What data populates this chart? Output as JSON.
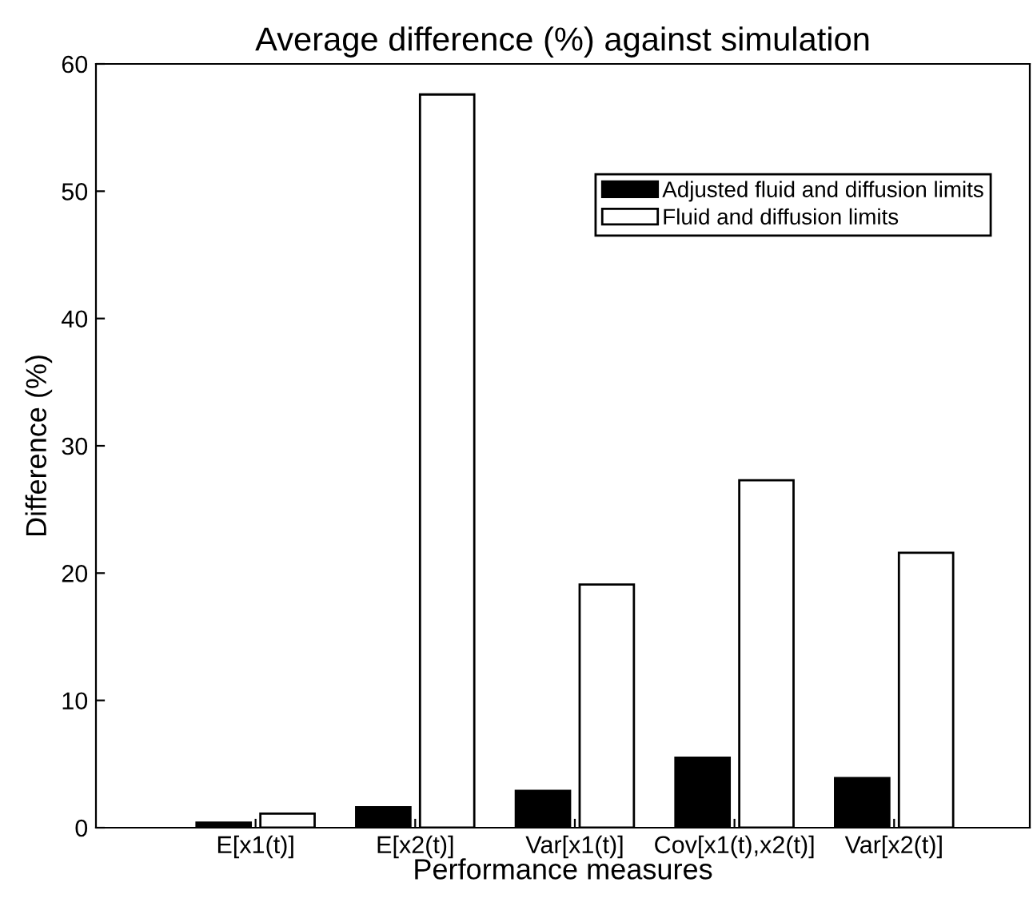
{
  "chart_data": {
    "type": "bar",
    "title": "Average difference (%) against simulation",
    "xlabel": "Performance measures",
    "ylabel": "Difference (%)",
    "categories": [
      "E[x1(t)]",
      "E[x2(t)]",
      "Var[x1(t)]",
      "Cov[x1(t),x2(t)]",
      "Var[x2(t)]"
    ],
    "series": [
      {
        "name": "Adjusted fluid and diffusion limits",
        "color": "#000000",
        "values": [
          0.4,
          1.6,
          2.9,
          5.5,
          3.9
        ]
      },
      {
        "name": "Fluid and diffusion limits",
        "color": "#ffffff",
        "values": [
          1.1,
          57.6,
          19.1,
          27.3,
          21.6
        ]
      }
    ],
    "ylim": [
      0,
      60
    ],
    "yticks": [
      0,
      10,
      20,
      30,
      40,
      50,
      60
    ],
    "legend": "top right",
    "grid": false
  }
}
